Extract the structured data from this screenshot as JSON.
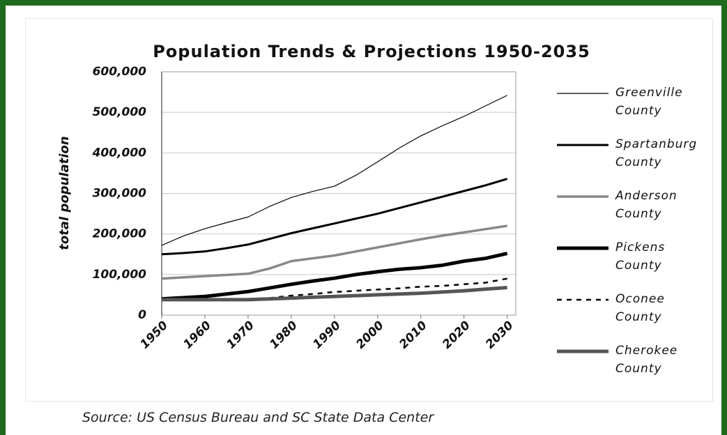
{
  "chart_data": {
    "type": "line",
    "title": "Population Trends & Projections 1950-2035",
    "ylabel": "total population",
    "source": "Source: US Census Bureau and SC State Data Center",
    "x": [
      1950,
      1955,
      1960,
      1965,
      1970,
      1975,
      1980,
      1985,
      1990,
      1995,
      2000,
      2005,
      2010,
      2015,
      2020,
      2025,
      2030
    ],
    "xlim": [
      1950,
      2032
    ],
    "xticks": [
      1950,
      1960,
      1970,
      1980,
      1990,
      2000,
      2010,
      2020,
      2030
    ],
    "ylim": [
      0,
      600000
    ],
    "yticks": [
      0,
      {
        "value": 100000,
        "label": "100,000"
      },
      {
        "value": 200000,
        "label": "200,000"
      },
      {
        "value": 300000,
        "label": "300,000"
      },
      {
        "value": 400000,
        "label": "400,000"
      },
      {
        "value": 500000,
        "label": "500,000"
      },
      {
        "value": 600000,
        "label": "600,000"
      }
    ],
    "grid": true,
    "legend": "right",
    "series": [
      {
        "name": "Greenville County",
        "color": "#000000",
        "values": [
          172000,
          195000,
          213000,
          228000,
          242000,
          268000,
          290000,
          305000,
          318000,
          345000,
          378000,
          412000,
          442000,
          467000,
          490000,
          516000,
          542000
        ]
      },
      {
        "name": "Spartanburg County",
        "color": "#000000",
        "values": [
          150000,
          153000,
          157000,
          165000,
          174000,
          188000,
          202000,
          214000,
          226000,
          238000,
          250000,
          264000,
          278000,
          292000,
          306000,
          320000,
          336000
        ]
      },
      {
        "name": "Anderson County",
        "color": "#888888",
        "values": [
          90000,
          93000,
          96000,
          99000,
          102000,
          115000,
          133000,
          140000,
          147000,
          157000,
          167000,
          177000,
          187000,
          196000,
          204000,
          212000,
          220000
        ]
      },
      {
        "name": "Pickens County",
        "color": "#000000",
        "values": [
          40000,
          43000,
          46000,
          52000,
          58000,
          67000,
          76000,
          84000,
          91000,
          100000,
          107000,
          113000,
          117000,
          123000,
          133000,
          140000,
          152000
        ]
      },
      {
        "name": "Oconee County",
        "color": "#000000",
        "values": [
          40000,
          40000,
          40000,
          40000,
          40000,
          42000,
          48000,
          52000,
          57000,
          60000,
          63000,
          66000,
          70000,
          72000,
          76000,
          80000,
          90000
        ]
      },
      {
        "name": "Cherokee County",
        "color": "#555555",
        "values": [
          38000,
          38000,
          38000,
          38000,
          38000,
          40000,
          42000,
          44000,
          46000,
          48000,
          50000,
          52000,
          54000,
          57000,
          60000,
          64000,
          68000
        ]
      }
    ]
  }
}
